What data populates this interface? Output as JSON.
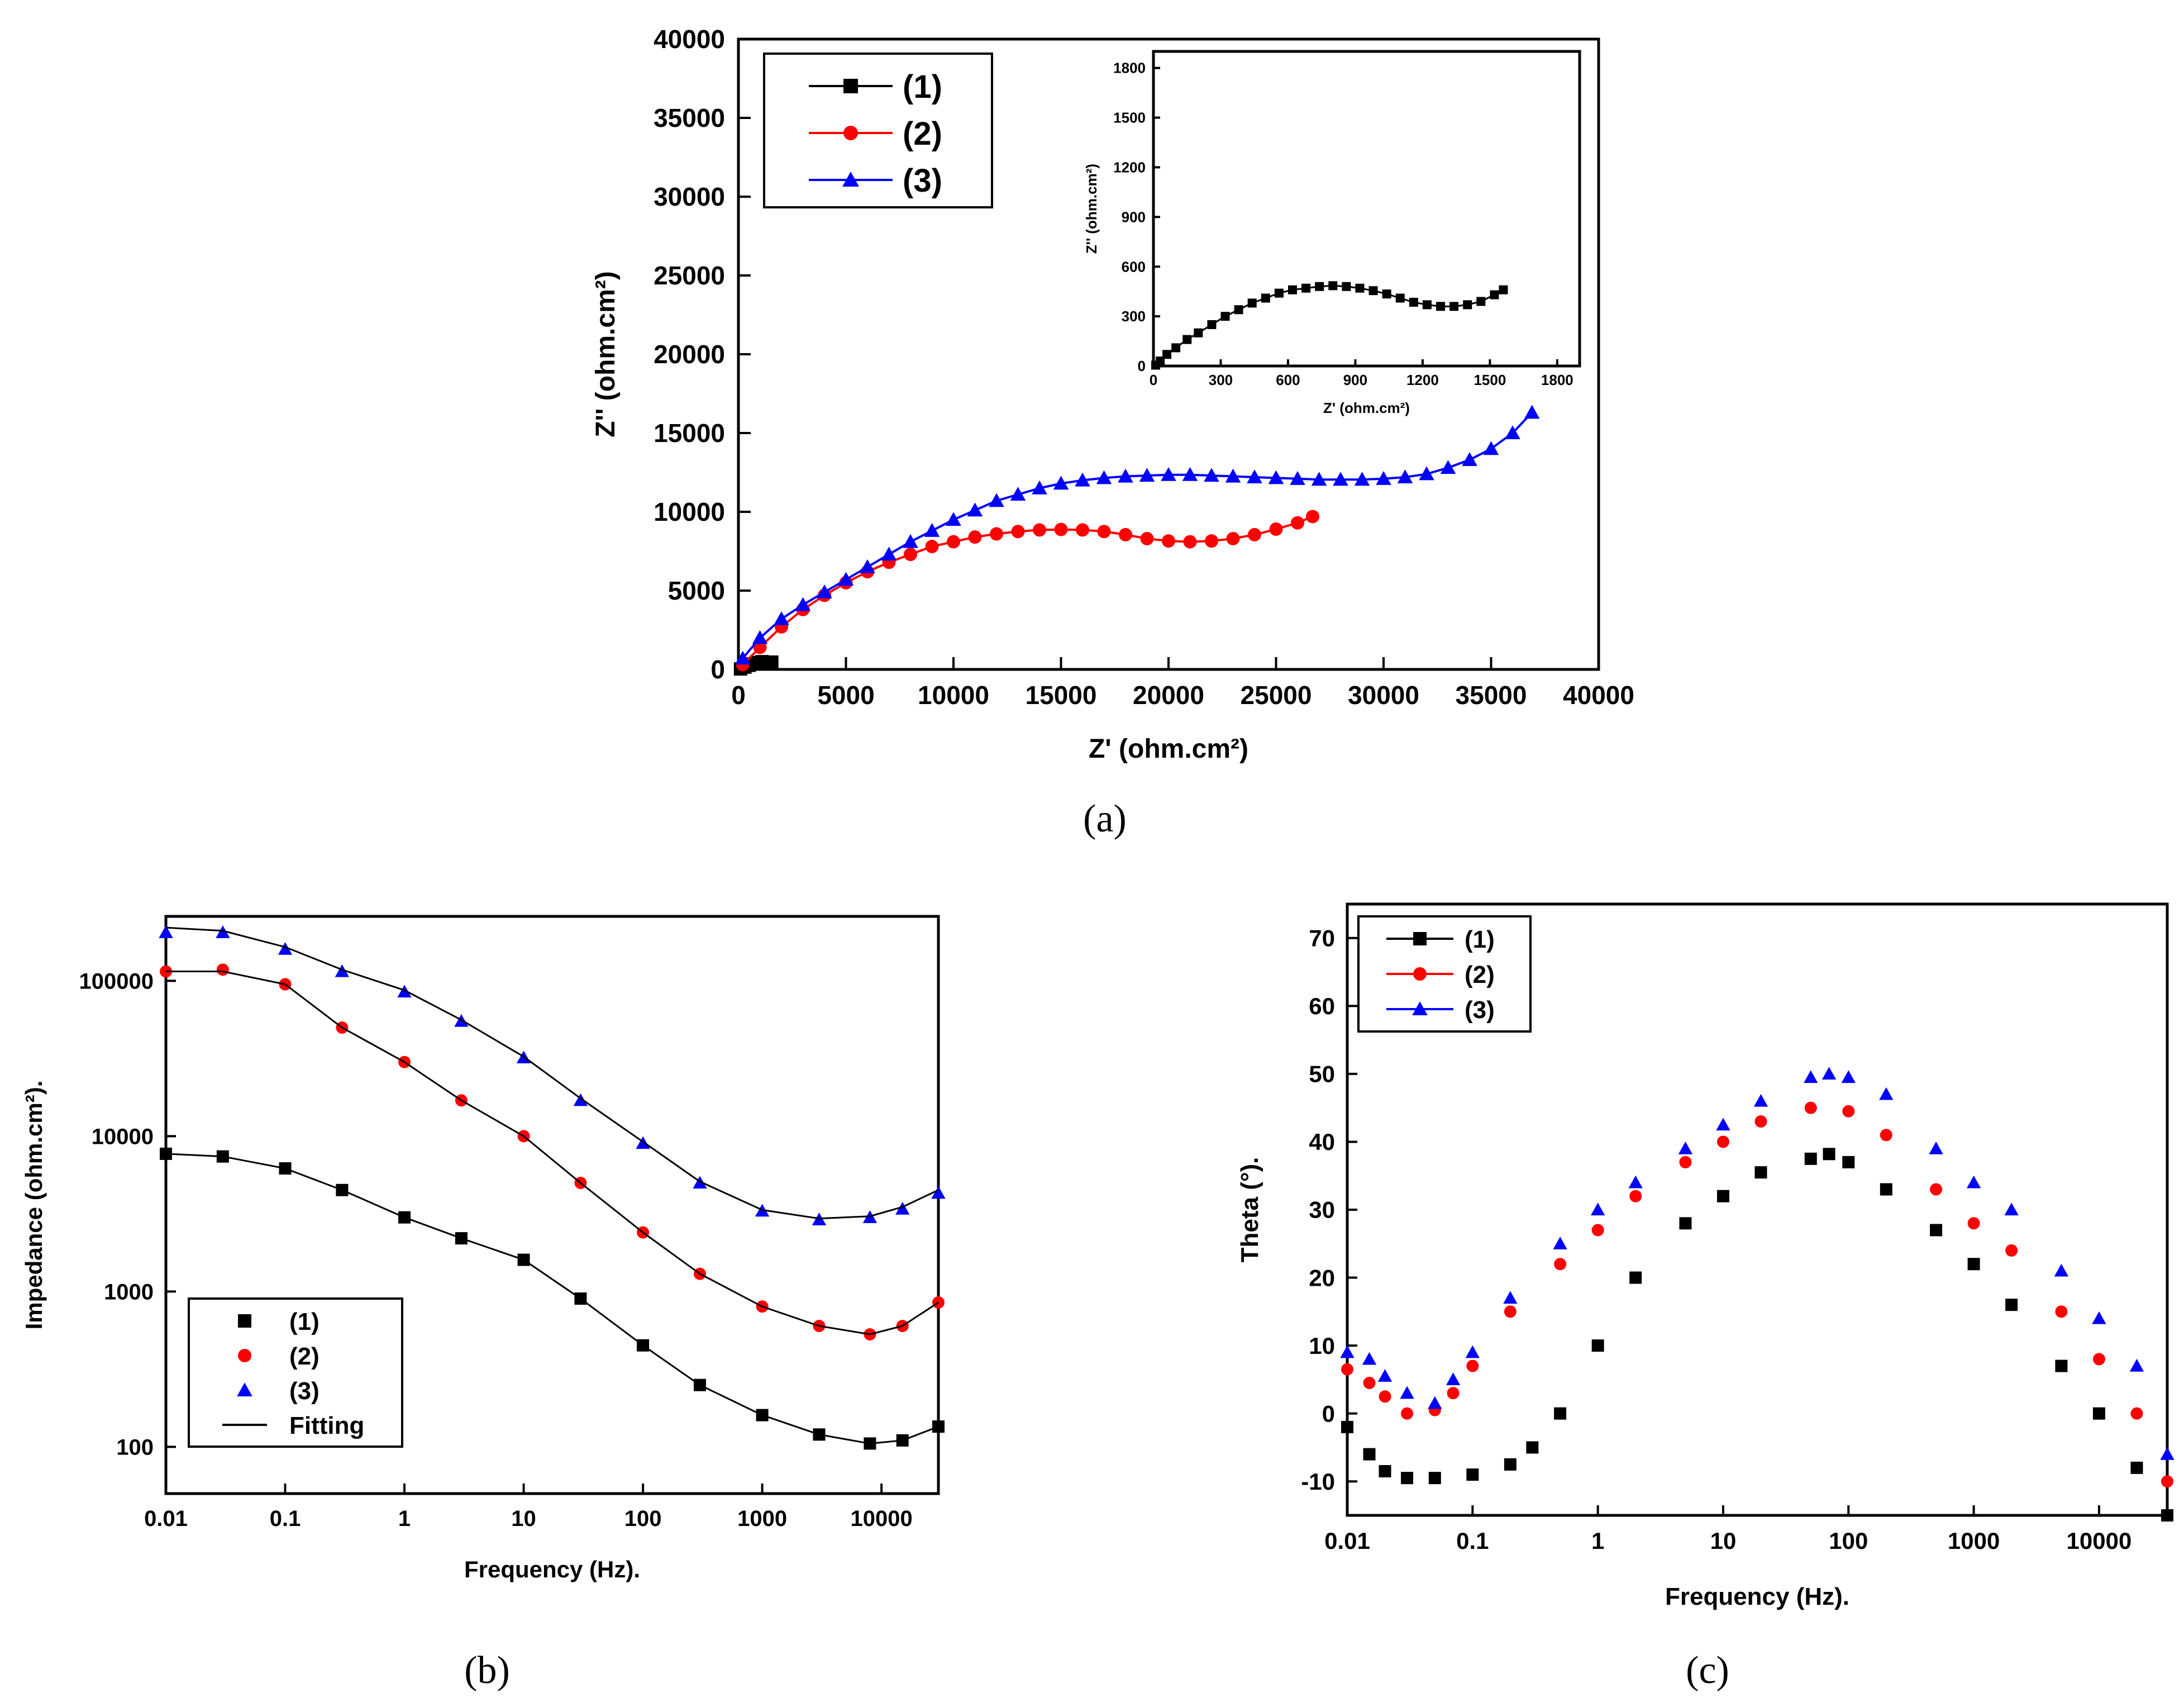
{
  "colors": {
    "s1": "#000000",
    "s2": "#ff0000",
    "s3": "#0000ff"
  },
  "chart_data": [
    {
      "id": "a",
      "panel_label": "(a)",
      "type": "scatter",
      "xlabel": "Z' (ohm.cm²)",
      "ylabel": "Z'' (ohm.cm²)",
      "xlim": [
        0,
        40000
      ],
      "ylim": [
        0,
        40000
      ],
      "xticks": [
        0,
        5000,
        10000,
        15000,
        20000,
        25000,
        30000,
        35000,
        40000
      ],
      "yticks": [
        0,
        5000,
        10000,
        15000,
        20000,
        25000,
        30000,
        35000,
        40000
      ],
      "legend": [
        {
          "name": "(1)",
          "marker": "square"
        },
        {
          "name": "(2)",
          "marker": "circle"
        },
        {
          "name": "(3)",
          "marker": "triangle"
        }
      ],
      "series": [
        {
          "name": "(1)",
          "marker": "square",
          "x": [
            100,
            300,
            500,
            700,
            900,
            1100,
            1300,
            1500,
            1550
          ],
          "y": [
            30,
            150,
            260,
            350,
            440,
            490,
            430,
            380,
            460
          ]
        },
        {
          "name": "(2)",
          "marker": "circle",
          "x": [
            200,
            1000,
            2000,
            3000,
            4000,
            5000,
            6000,
            7000,
            8000,
            9000,
            10000,
            11000,
            12000,
            13000,
            14000,
            15000,
            16000,
            17000,
            18000,
            19000,
            20000,
            21000,
            22000,
            23000,
            24000,
            25000,
            26000,
            26700
          ],
          "y": [
            300,
            1400,
            2700,
            3800,
            4700,
            5500,
            6200,
            6800,
            7300,
            7800,
            8100,
            8400,
            8600,
            8750,
            8850,
            8880,
            8850,
            8750,
            8550,
            8300,
            8150,
            8100,
            8150,
            8300,
            8550,
            8900,
            9300,
            9700
          ]
        },
        {
          "name": "(3)",
          "marker": "triangle",
          "x": [
            200,
            1000,
            2000,
            3000,
            4000,
            5000,
            6000,
            7000,
            8000,
            9000,
            10000,
            11000,
            12000,
            13000,
            14000,
            15000,
            16000,
            17000,
            18000,
            19000,
            20000,
            21000,
            22000,
            23000,
            24000,
            25000,
            26000,
            27000,
            28000,
            29000,
            30000,
            31000,
            32000,
            33000,
            34000,
            35000,
            36000,
            36900
          ],
          "y": [
            700,
            2000,
            3200,
            4100,
            4900,
            5700,
            6500,
            7300,
            8100,
            8800,
            9500,
            10100,
            10700,
            11100,
            11500,
            11800,
            12000,
            12150,
            12250,
            12300,
            12350,
            12350,
            12300,
            12250,
            12200,
            12150,
            12100,
            12050,
            12050,
            12050,
            12100,
            12200,
            12400,
            12800,
            13300,
            14000,
            15000,
            16300
          ]
        }
      ],
      "inset": {
        "xlabel": "Z' (ohm.cm²)",
        "ylabel": "Z'' (ohm.cm²)",
        "xlim": [
          0,
          1900
        ],
        "ylim": [
          0,
          1900
        ],
        "xticks": [
          0,
          300,
          600,
          900,
          1200,
          1500,
          1800
        ],
        "yticks": [
          0,
          300,
          600,
          900,
          1200,
          1500,
          1800
        ],
        "series": [
          {
            "name": "(1)",
            "marker": "square",
            "x": [
              10,
              30,
              60,
              100,
              150,
              200,
              260,
              320,
              380,
              440,
              500,
              560,
              620,
              680,
              740,
              800,
              860,
              920,
              980,
              1040,
              1100,
              1160,
              1220,
              1280,
              1340,
              1400,
              1460,
              1520,
              1560
            ],
            "y": [
              5,
              30,
              70,
              110,
              160,
              200,
              250,
              300,
              340,
              380,
              410,
              440,
              460,
              470,
              480,
              485,
              480,
              470,
              455,
              435,
              410,
              385,
              370,
              360,
              360,
              370,
              390,
              430,
              460
            ]
          }
        ]
      }
    },
    {
      "id": "b",
      "panel_label": "(b)",
      "type": "scatter",
      "xscale": "log",
      "yscale": "log",
      "xlabel": "Frequency (Hz).",
      "ylabel": "Impedance (ohm.cm²).",
      "xlim": [
        0.01,
        30000
      ],
      "ylim": [
        50,
        260000
      ],
      "xticks": [
        0.01,
        0.1,
        1,
        10,
        100,
        1000,
        10000
      ],
      "xtick_labels": [
        "0.01",
        "0.1",
        "1",
        "10",
        "100",
        "1000",
        "10000"
      ],
      "yticks": [
        100,
        1000,
        10000,
        100000
      ],
      "ytick_labels": [
        "100",
        "1000",
        "10000",
        "100000"
      ],
      "legend": [
        {
          "name": "(1)",
          "marker": "square"
        },
        {
          "name": "(2)",
          "marker": "circle"
        },
        {
          "name": "(3)",
          "marker": "triangle"
        },
        {
          "name": "Fitting",
          "marker": "line"
        }
      ],
      "series": [
        {
          "name": "(1)",
          "marker": "square",
          "x": [
            0.01,
            0.03,
            0.1,
            0.3,
            1,
            3,
            10,
            30,
            100,
            300,
            1000,
            3000,
            8000,
            15000,
            30000
          ],
          "y": [
            7700,
            7400,
            6200,
            4500,
            3000,
            2200,
            1600,
            900,
            450,
            250,
            160,
            120,
            105,
            110,
            135
          ]
        },
        {
          "name": "(2)",
          "marker": "circle",
          "x": [
            0.01,
            0.03,
            0.1,
            0.3,
            1,
            3,
            10,
            30,
            100,
            300,
            1000,
            3000,
            8000,
            15000,
            30000
          ],
          "y": [
            115000,
            118000,
            95000,
            50000,
            30000,
            17000,
            10000,
            5000,
            2400,
            1300,
            800,
            600,
            530,
            600,
            850
          ]
        },
        {
          "name": "(3)",
          "marker": "triangle",
          "x": [
            0.01,
            0.03,
            0.1,
            0.3,
            1,
            3,
            10,
            30,
            100,
            300,
            1000,
            3000,
            8000,
            15000,
            30000
          ],
          "y": [
            205000,
            205000,
            160000,
            115000,
            85000,
            55000,
            32000,
            17000,
            9000,
            5000,
            3300,
            2900,
            3000,
            3400,
            4300
          ]
        },
        {
          "name": "Fitting",
          "marker": "line",
          "group": [
            {
              "x": [
                0.01,
                0.03,
                0.1,
                0.3,
                1,
                3,
                10,
                30,
                100,
                300,
                1000,
                3000,
                8000,
                15000,
                30000
              ],
              "y": [
                7700,
                7400,
                6200,
                4500,
                3000,
                2200,
                1600,
                900,
                450,
                250,
                160,
                120,
                105,
                110,
                135
              ]
            },
            {
              "x": [
                0.01,
                0.03,
                0.1,
                0.3,
                1,
                3,
                10,
                30,
                100,
                300,
                1000,
                3000,
                8000,
                15000,
                30000
              ],
              "y": [
                115000,
                115000,
                95000,
                50000,
                30000,
                17000,
                10000,
                5000,
                2400,
                1300,
                800,
                600,
                530,
                600,
                850
              ]
            },
            {
              "x": [
                0.01,
                0.03,
                0.1,
                0.3,
                1,
                3,
                10,
                30,
                100,
                300,
                1000,
                3000,
                8000,
                15000,
                30000
              ],
              "y": [
                220000,
                210000,
                165000,
                118000,
                87000,
                56000,
                32500,
                17500,
                9200,
                5100,
                3350,
                2950,
                3050,
                3500,
                4500
              ]
            }
          ]
        }
      ]
    },
    {
      "id": "c",
      "panel_label": "(c)",
      "type": "scatter",
      "xscale": "log",
      "xlabel": "Frequency (Hz).",
      "ylabel": "Theta (°).",
      "xlim": [
        0.01,
        35000
      ],
      "ylim": [
        -15,
        75
      ],
      "xticks": [
        0.01,
        0.1,
        1,
        10,
        100,
        1000,
        10000
      ],
      "xtick_labels": [
        "0.01",
        "0.1",
        "1",
        "10",
        "100",
        "1000",
        "10000"
      ],
      "yticks": [
        -10,
        0,
        10,
        20,
        30,
        40,
        50,
        60,
        70
      ],
      "legend": [
        {
          "name": "(1)",
          "marker": "square"
        },
        {
          "name": "(2)",
          "marker": "circle"
        },
        {
          "name": "(3)",
          "marker": "triangle"
        }
      ],
      "series": [
        {
          "name": "(1)",
          "marker": "square",
          "x": [
            0.01,
            0.015,
            0.02,
            0.03,
            0.05,
            0.1,
            0.2,
            0.3,
            0.5,
            1,
            2,
            5,
            10,
            20,
            50,
            70,
            100,
            200,
            500,
            1000,
            2000,
            5000,
            10000,
            20000,
            35000
          ],
          "y": [
            -2,
            -6,
            -8.5,
            -9.5,
            -9.5,
            -9,
            -7.5,
            -5,
            0,
            10,
            20,
            28,
            32,
            35.5,
            37.5,
            38.2,
            37,
            33,
            27,
            22,
            16,
            7,
            0,
            -8,
            -15
          ]
        },
        {
          "name": "(2)",
          "marker": "circle",
          "x": [
            0.01,
            0.015,
            0.02,
            0.03,
            0.05,
            0.07,
            0.1,
            0.2,
            0.5,
            1,
            2,
            5,
            10,
            20,
            50,
            100,
            200,
            500,
            1000,
            2000,
            5000,
            10000,
            20000,
            35000
          ],
          "y": [
            6.5,
            4.5,
            2.5,
            0,
            0.5,
            3,
            7,
            15,
            22,
            27,
            32,
            37,
            40,
            43,
            45,
            44.5,
            41,
            33,
            28,
            24,
            15,
            8,
            0,
            -10
          ]
        },
        {
          "name": "(3)",
          "marker": "triangle",
          "x": [
            0.01,
            0.015,
            0.02,
            0.03,
            0.05,
            0.07,
            0.1,
            0.2,
            0.5,
            1,
            2,
            5,
            10,
            20,
            50,
            70,
            100,
            200,
            500,
            1000,
            2000,
            5000,
            10000,
            20000,
            35000
          ],
          "y": [
            9,
            8,
            5.5,
            3,
            1.5,
            5,
            9,
            17,
            25,
            30,
            34,
            39,
            42.5,
            46,
            49.5,
            50,
            49.5,
            47,
            39,
            34,
            30,
            21,
            14,
            7,
            -6
          ]
        }
      ]
    }
  ]
}
